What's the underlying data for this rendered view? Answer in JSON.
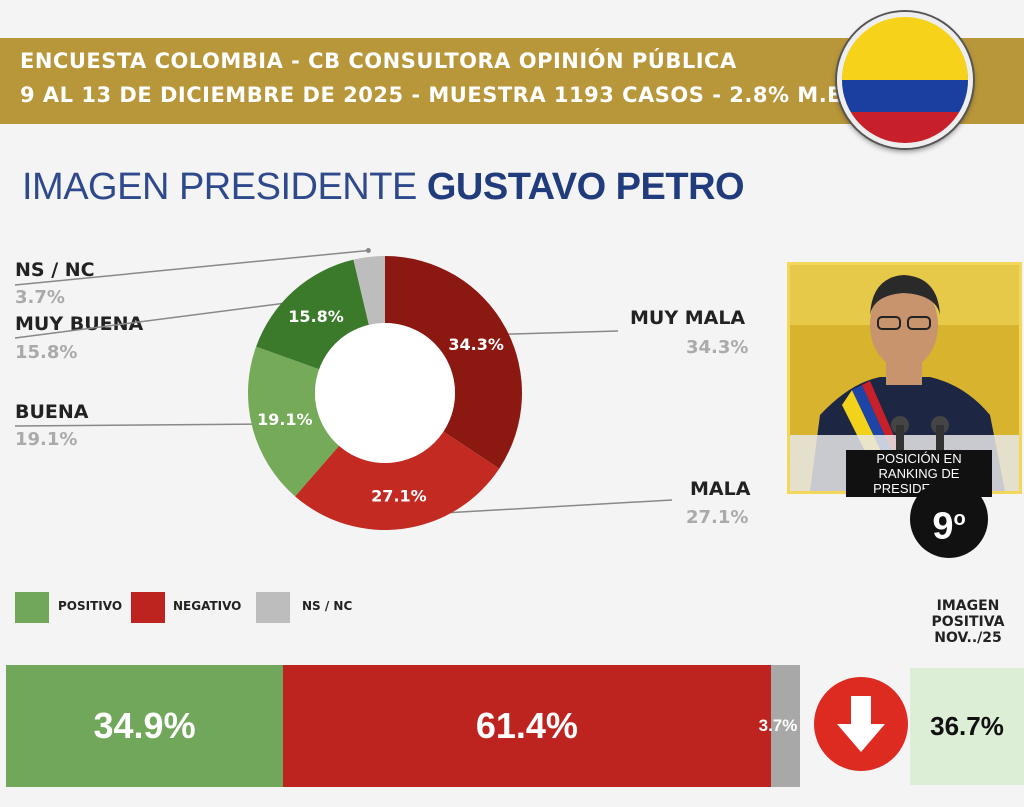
{
  "header": {
    "line1": "ENCUESTA COLOMBIA - CB CONSULTORA OPINIÓN PÚBLICA",
    "line2": "9 AL 13 DE DICIEMBRE DE 2025 - MUESTRA 1193 CASOS - 2.8% M.E."
  },
  "title": {
    "light": "IMAGEN PRESIDENTE",
    "bold": "GUSTAVO PETRO"
  },
  "chart_data": [
    {
      "type": "pie",
      "donut": true,
      "categories": [
        "MUY MALA",
        "MALA",
        "BUENA",
        "MUY BUENA",
        "NS / NC"
      ],
      "values": [
        34.3,
        27.1,
        19.1,
        15.8,
        3.7
      ],
      "slice_labels": [
        "34.3%",
        "27.1%",
        "19.1%",
        "15.8%",
        ""
      ],
      "outer_labels": [
        "34.3%",
        "27.1%",
        "19.1%",
        "15.8%",
        "3.7%"
      ],
      "colors": [
        "#8c1812",
        "#c22a22",
        "#74aa58",
        "#3b7a2a",
        "#bdbdbd"
      ]
    },
    {
      "type": "bar",
      "orientation": "horizontal-stacked",
      "categories": [
        "POSITIVO",
        "NEGATIVO",
        "NS / NC"
      ],
      "values": [
        34.9,
        61.4,
        3.7
      ],
      "labels": [
        "34.9%",
        "61.4%",
        "3.7%"
      ],
      "colors": [
        "#71a75a",
        "#be241f",
        "#a8a8a8"
      ]
    }
  ],
  "legend": [
    {
      "label": "POSITIVO",
      "color": "#71a75a"
    },
    {
      "label": "NEGATIVO",
      "color": "#be241f"
    },
    {
      "label": "NS / NC",
      "color": "#bdbdbd"
    }
  ],
  "ranking": {
    "caption": "POSICIÓN EN RANKING DE PRESIDENTES",
    "position": "9",
    "suffix": "o"
  },
  "previous": {
    "title": "IMAGEN POSITIVA NOV../25",
    "value": "36.7%",
    "trend": "down"
  }
}
